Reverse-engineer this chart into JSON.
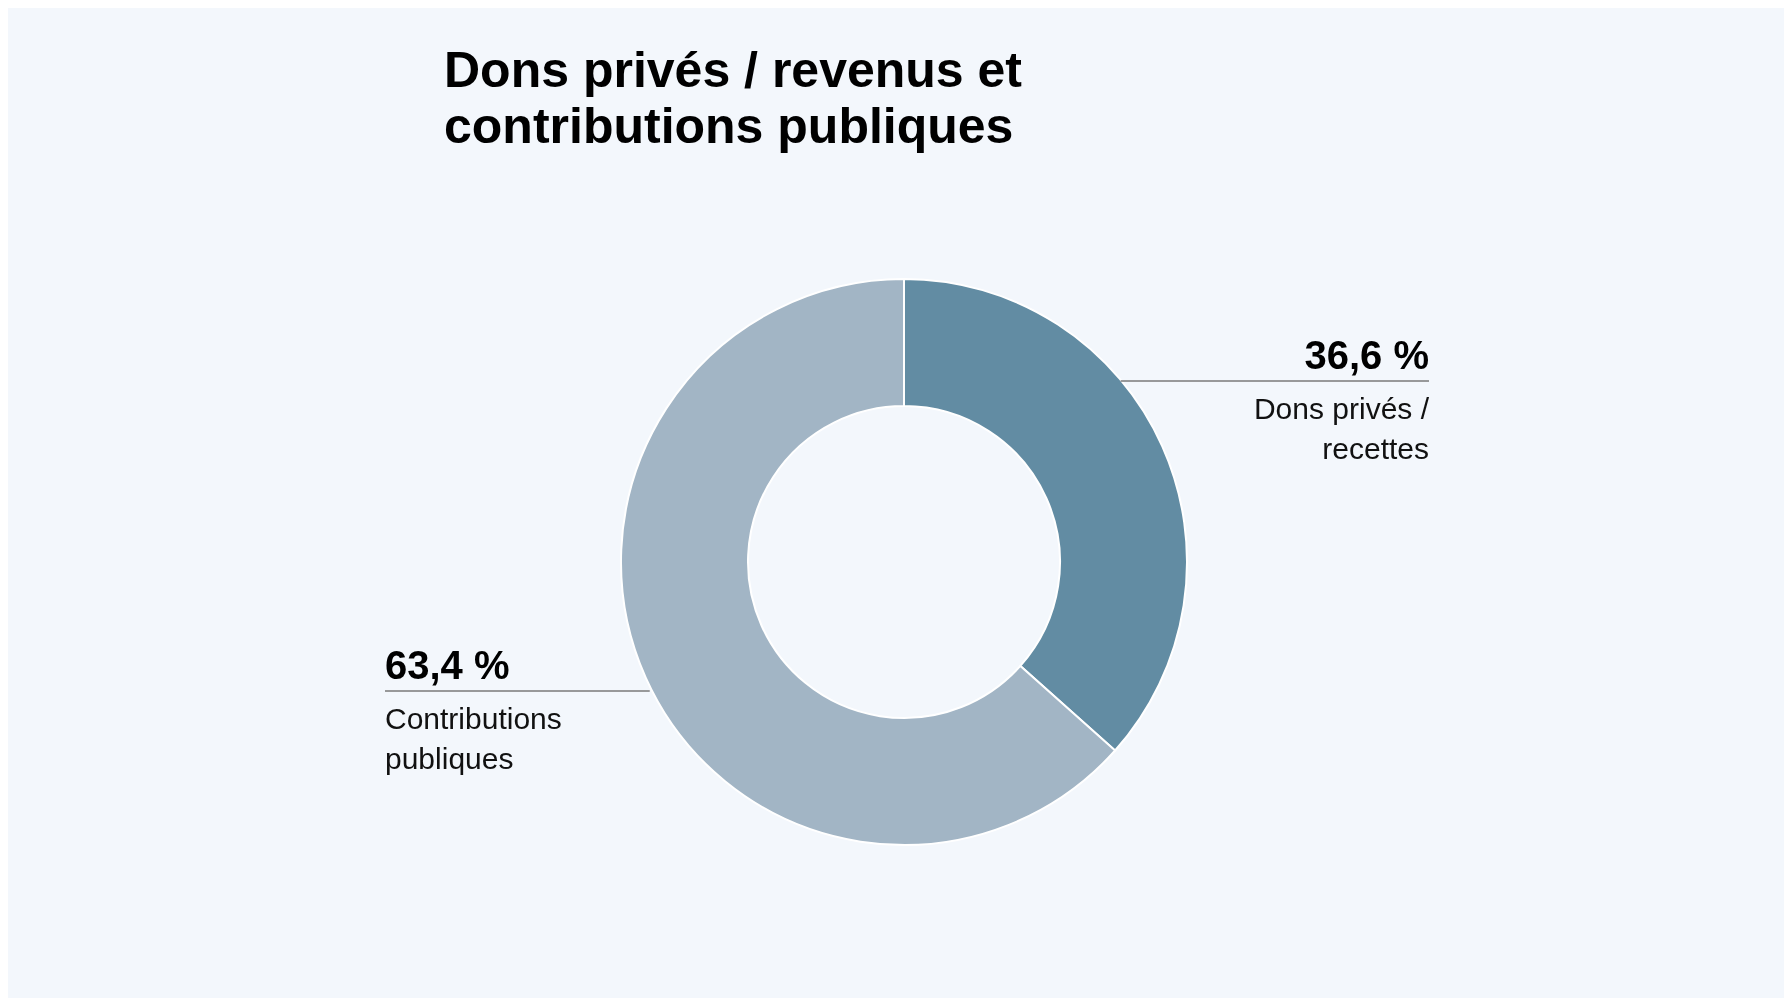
{
  "chart_data": {
    "type": "donut",
    "title": "Dons privés / revenus et contributions publiques",
    "categories": [
      "Dons privés / recettes",
      "Contributions publiques"
    ],
    "values": [
      36.6,
      63.4
    ],
    "colors": [
      "#628ca3",
      "#a2b5c5"
    ],
    "value_labels": [
      "36,6 %",
      "63,4 %"
    ],
    "legend": false
  }
}
